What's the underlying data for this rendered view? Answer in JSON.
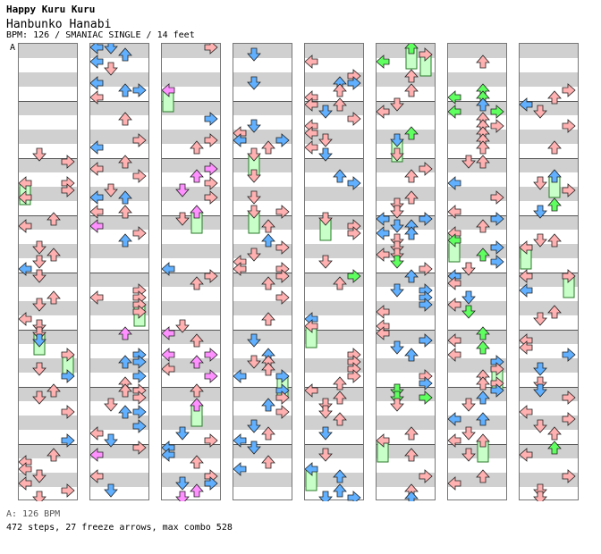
{
  "song": {
    "title": "Happy Kuru Kuru",
    "subtitle": "Hanbunko Hanabi",
    "meta": "BPM: 126 / SMANIAC SINGLE / 14 feet",
    "section_marker": "A"
  },
  "footer": {
    "bpm_line": "A: 126 BPM",
    "stats_line": "472 steps, 27 freeze arrows, max combo 528"
  },
  "colors": {
    "quarter": "#ffb0b0",
    "eighth": "#60b0ff",
    "sixteenth": "#ff90ff",
    "twelfth": "#60ff60",
    "freeze": "#c8ffc8",
    "outline": "#202020"
  },
  "chart_data": {
    "type": "step-chart",
    "columns": 8,
    "measures_per_column": 8,
    "lanes": [
      "left",
      "down",
      "up",
      "right"
    ]
  }
}
